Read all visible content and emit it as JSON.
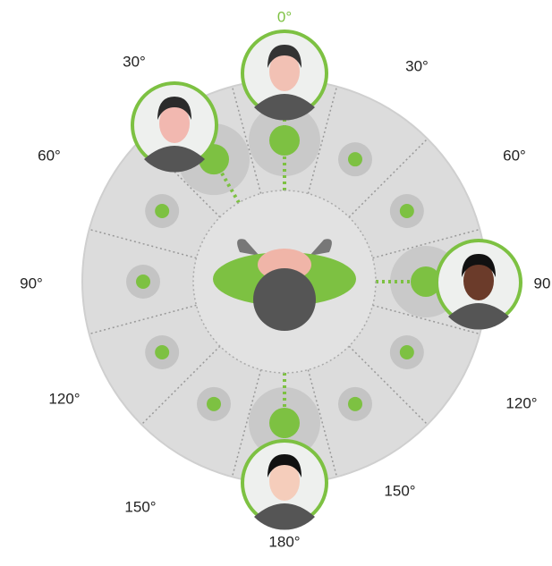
{
  "angle_labels": [
    "0°",
    "30°",
    "30°",
    "60°",
    "60°",
    "90°",
    "90",
    "120°",
    "120°",
    "150°",
    "150°",
    "180°"
  ]
}
